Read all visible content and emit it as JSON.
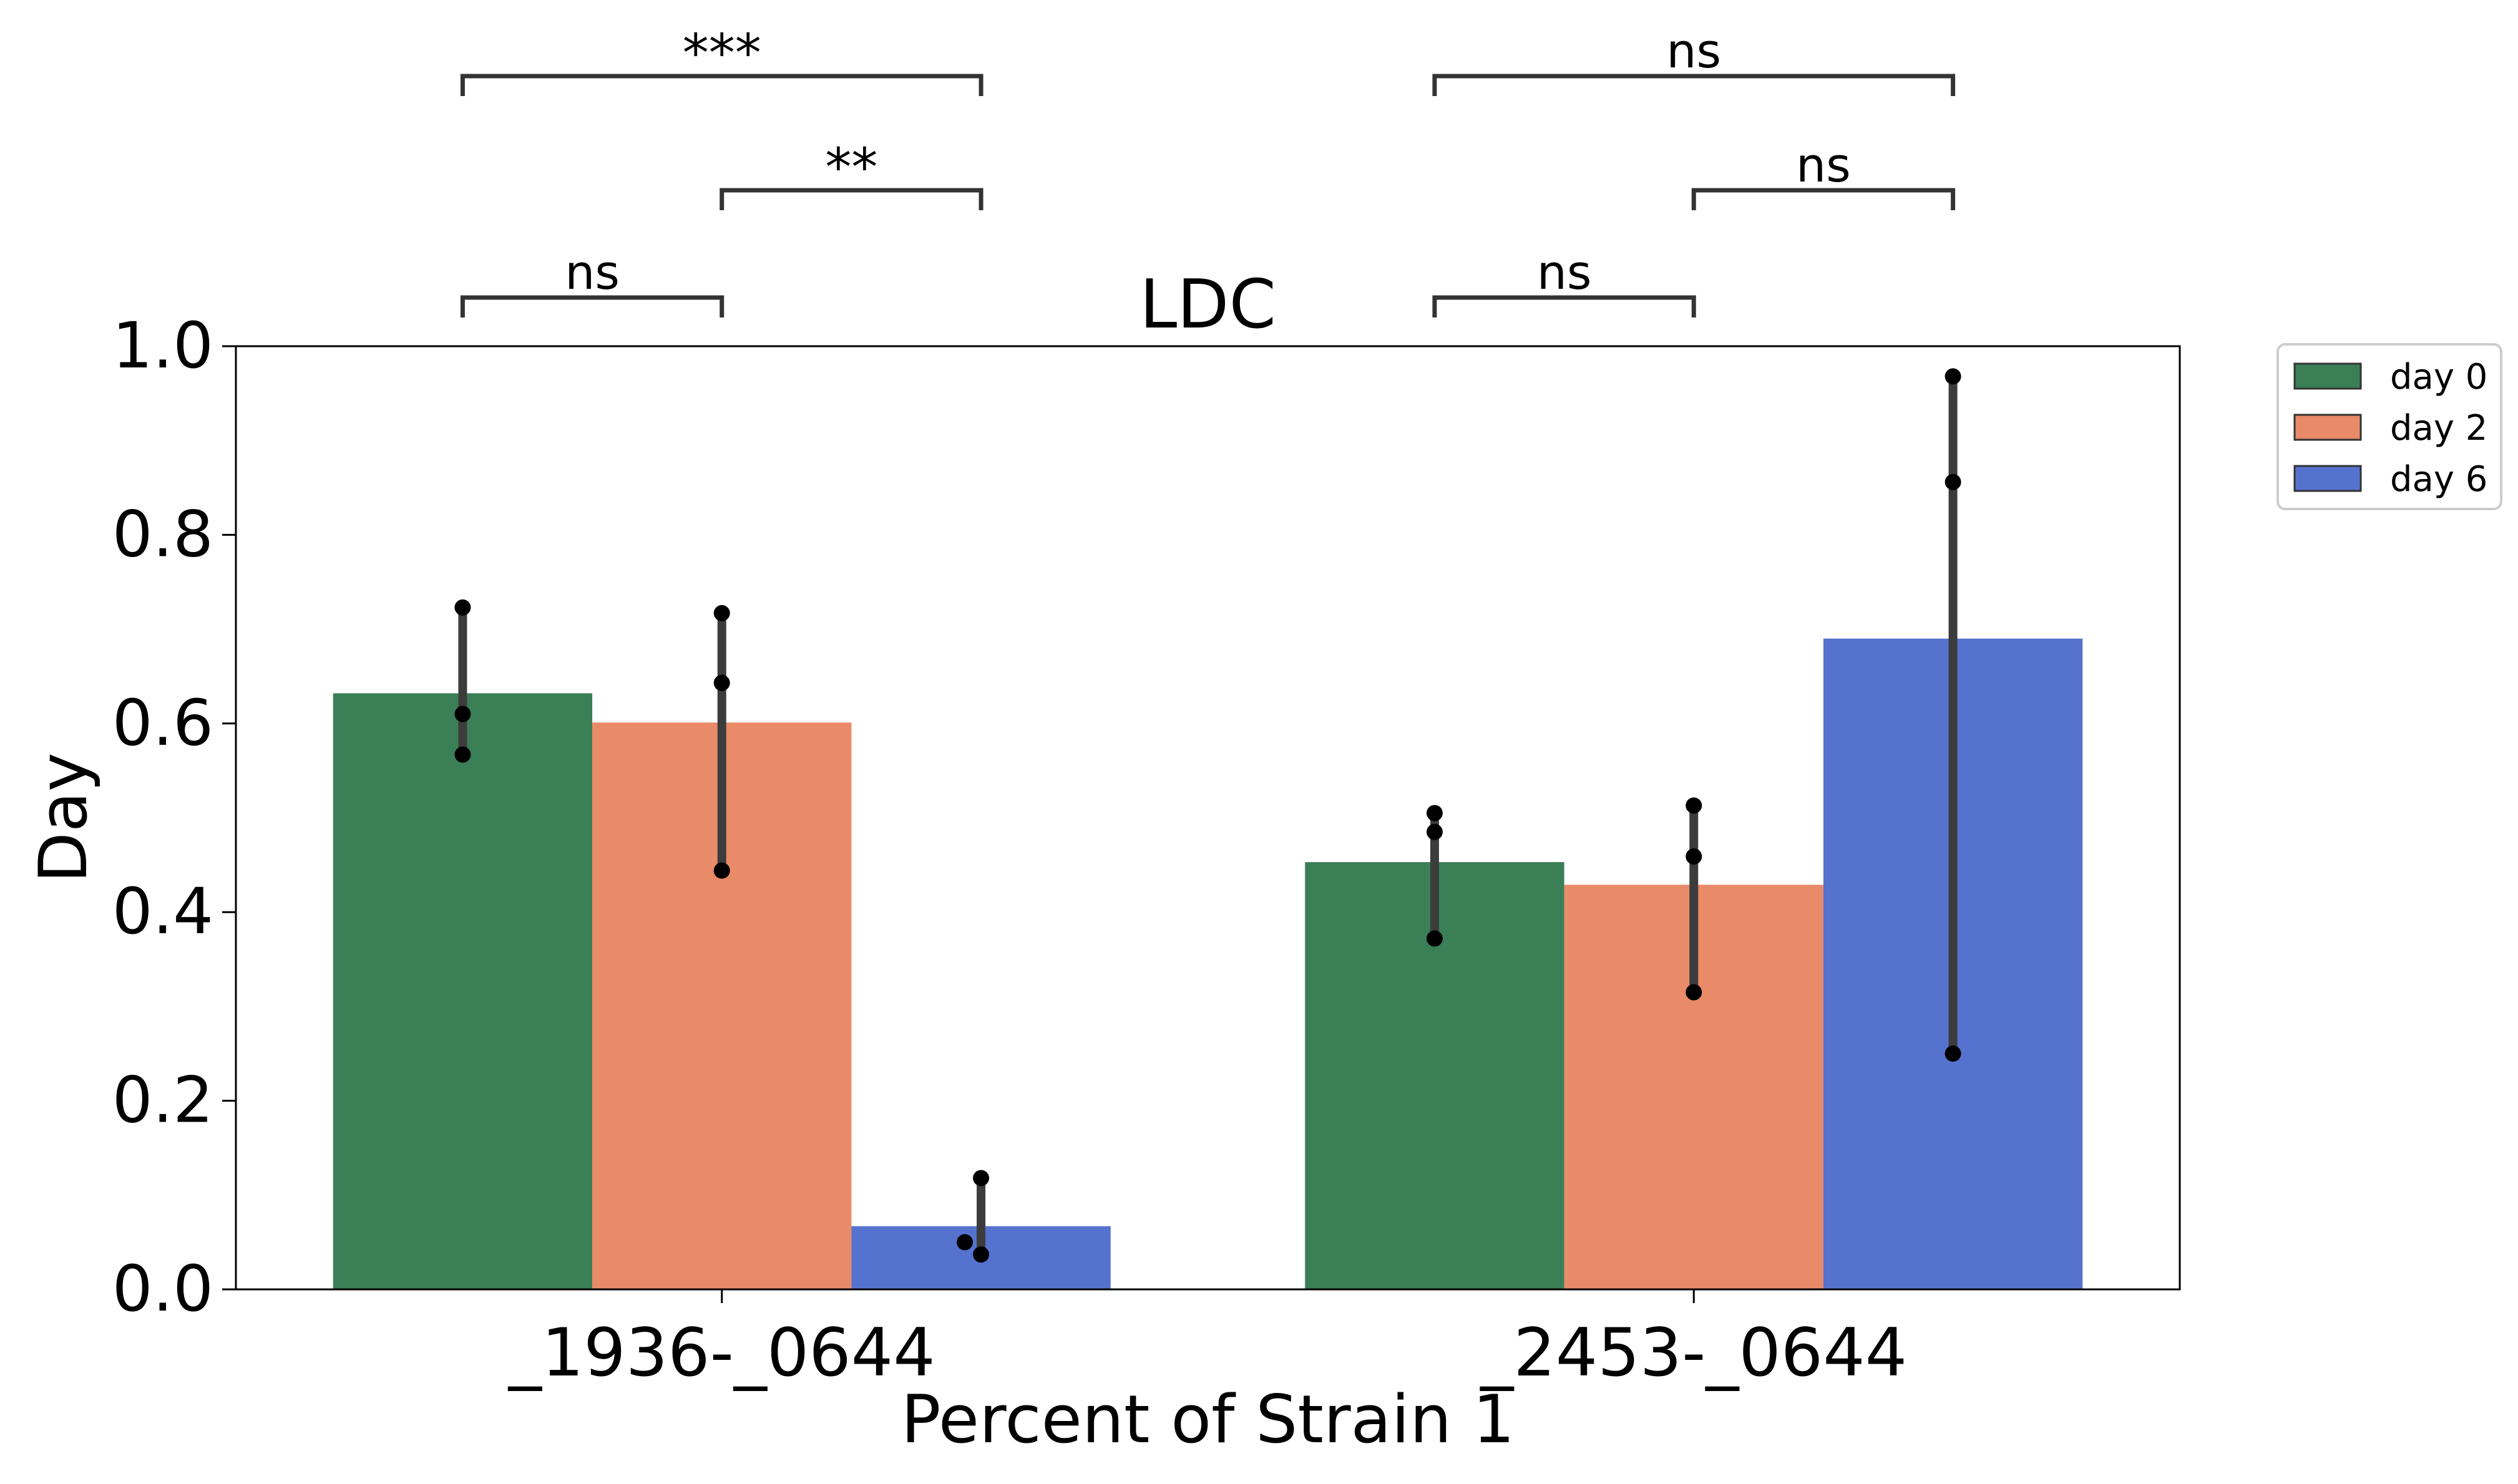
{
  "chart_data": {
    "type": "bar",
    "title": "LDC",
    "xlabel": "Percent of Strain 1",
    "ylabel": "Day",
    "ylim": [
      0,
      1.0
    ],
    "yticks": [
      "0.0",
      "0.2",
      "0.4",
      "0.6",
      "0.8",
      "1.0"
    ],
    "categories": [
      "_1936-_0644",
      "_2453-_0644"
    ],
    "legend_position": "outside-right-top",
    "grid": false,
    "series": [
      {
        "name": "day 0",
        "color": "#3b7f57",
        "values": [
          0.632,
          0.453
        ],
        "error_low": [
          0.567,
          0.372
        ],
        "error_high": [
          0.723,
          0.505
        ],
        "points": [
          [
            0.723,
            0.61,
            0.567
          ],
          [
            0.505,
            0.485,
            0.372
          ]
        ]
      },
      {
        "name": "day 2",
        "color": "#e98a68",
        "values": [
          0.601,
          0.429
        ],
        "error_low": [
          0.444,
          0.315
        ],
        "error_high": [
          0.717,
          0.513
        ],
        "points": [
          [
            0.717,
            0.643,
            0.444
          ],
          [
            0.513,
            0.459,
            0.315
          ]
        ]
      },
      {
        "name": "day 6",
        "color": "#5572ce",
        "values": [
          0.067,
          0.69
        ],
        "error_low": [
          0.037,
          0.25
        ],
        "error_high": [
          0.118,
          0.968
        ],
        "points": [
          [
            0.118,
            0.05,
            0.037
          ],
          [
            0.968,
            0.856,
            0.25
          ]
        ]
      }
    ],
    "annotations": [
      {
        "category": 0,
        "from": 0,
        "to": 2,
        "level": 3,
        "label": "***"
      },
      {
        "category": 0,
        "from": 1,
        "to": 2,
        "level": 2,
        "label": "**"
      },
      {
        "category": 0,
        "from": 0,
        "to": 1,
        "level": 1,
        "label": "ns"
      },
      {
        "category": 1,
        "from": 0,
        "to": 2,
        "level": 3,
        "label": "ns"
      },
      {
        "category": 1,
        "from": 1,
        "to": 2,
        "level": 2,
        "label": "ns"
      },
      {
        "category": 1,
        "from": 0,
        "to": 1,
        "level": 1,
        "label": "ns"
      }
    ]
  }
}
